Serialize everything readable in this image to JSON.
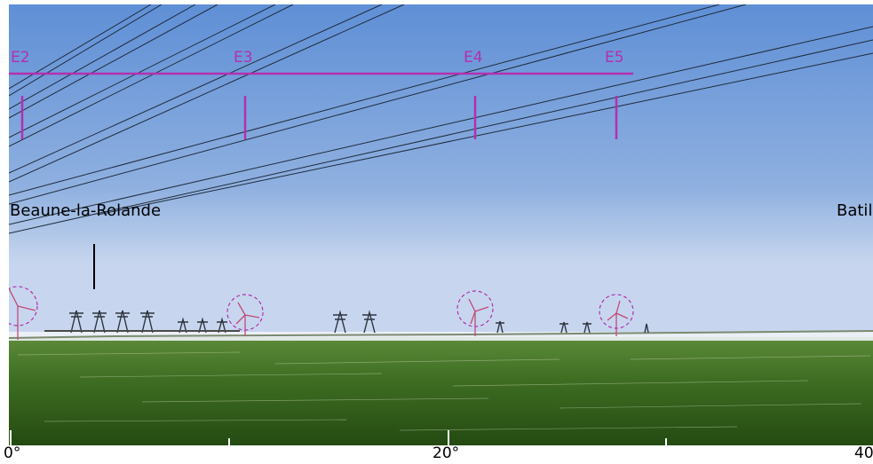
{
  "annotation_color": "#b230b0",
  "turbine_markers": [
    {
      "label": "E2"
    },
    {
      "label": "E3"
    },
    {
      "label": "E4"
    },
    {
      "label": "E5"
    }
  ],
  "towns": [
    {
      "label": "Beaune-la-Rolande"
    },
    {
      "label": "Batil"
    }
  ],
  "azimuth_scale": {
    "labels": [
      "0°",
      "20°",
      "40"
    ]
  }
}
